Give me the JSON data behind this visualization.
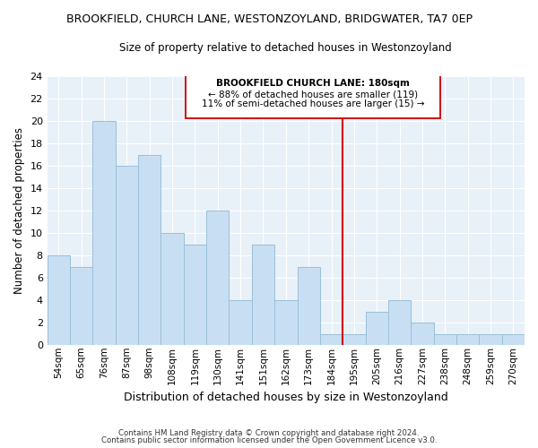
{
  "title": "BROOKFIELD, CHURCH LANE, WESTONZOYLAND, BRIDGWATER, TA7 0EP",
  "subtitle": "Size of property relative to detached houses in Westonzoyland",
  "xlabel": "Distribution of detached houses by size in Westonzoyland",
  "ylabel": "Number of detached properties",
  "bar_labels": [
    "54sqm",
    "65sqm",
    "76sqm",
    "87sqm",
    "98sqm",
    "108sqm",
    "119sqm",
    "130sqm",
    "141sqm",
    "151sqm",
    "162sqm",
    "173sqm",
    "184sqm",
    "195sqm",
    "205sqm",
    "216sqm",
    "227sqm",
    "238sqm",
    "248sqm",
    "259sqm",
    "270sqm"
  ],
  "bar_values": [
    8,
    7,
    20,
    16,
    17,
    10,
    9,
    12,
    4,
    9,
    4,
    7,
    1,
    1,
    3,
    4,
    2,
    1,
    1,
    1,
    1
  ],
  "bar_color": "#c8dff3",
  "bar_edge_color": "#9abfd9",
  "ylim": [
    0,
    24
  ],
  "yticks": [
    0,
    2,
    4,
    6,
    8,
    10,
    12,
    14,
    16,
    18,
    20,
    22,
    24
  ],
  "vline_x": 12.5,
  "vline_color": "#cc0000",
  "annotation_title": "BROOKFIELD CHURCH LANE: 180sqm",
  "annotation_line1": "← 88% of detached houses are smaller (119)",
  "annotation_line2": "11% of semi-detached houses are larger (15) →",
  "footer1": "Contains HM Land Registry data © Crown copyright and database right 2024.",
  "footer2": "Contains public sector information licensed under the Open Government Licence v3.0.",
  "plot_bg_color": "#e8f0f8",
  "fig_bg_color": "#ffffff",
  "grid_color": "#ffffff"
}
